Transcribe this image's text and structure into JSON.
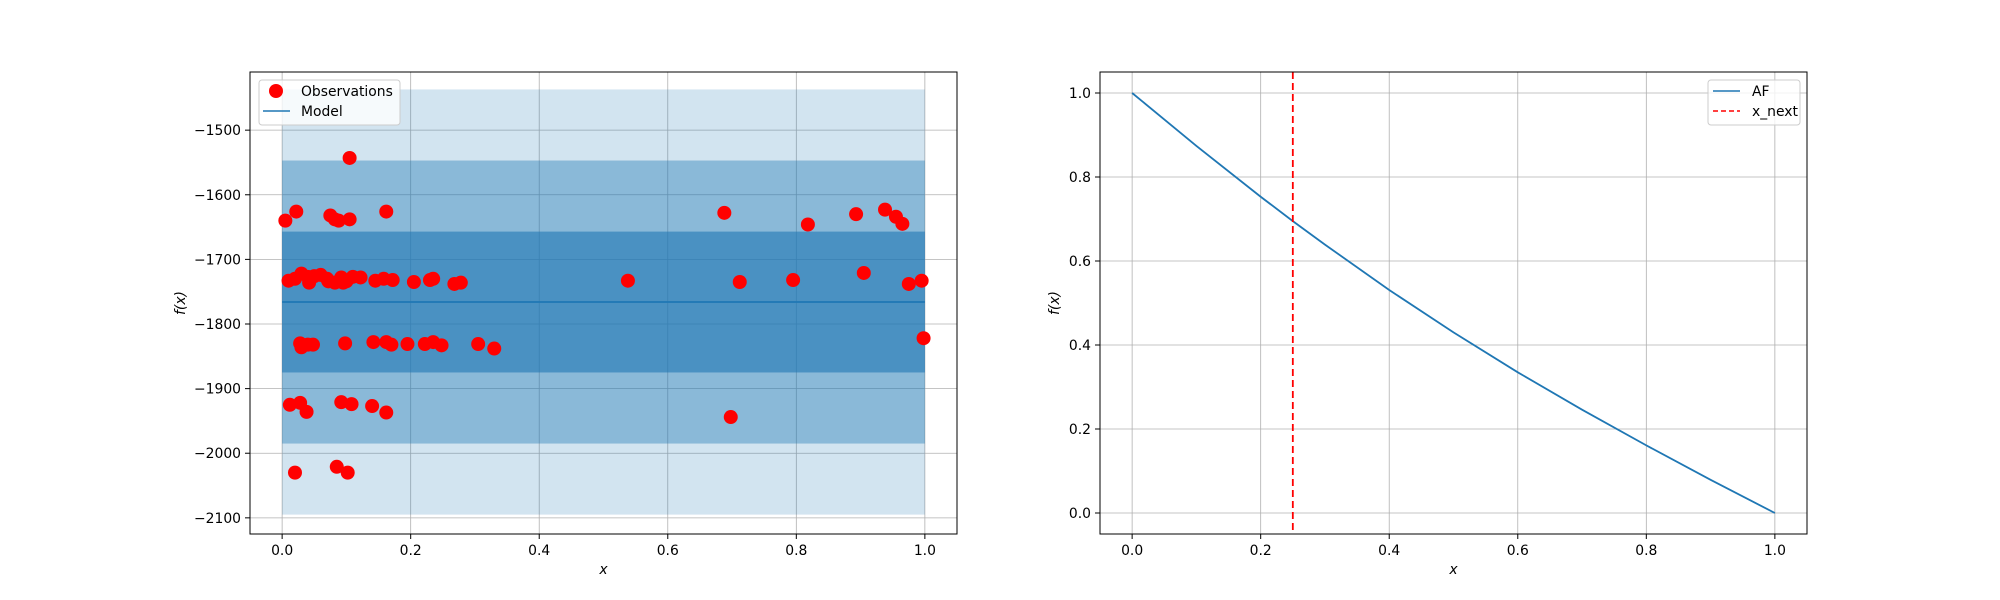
{
  "chart_data": [
    {
      "type": "scatter",
      "xlabel": "x",
      "ylabel": "f(x)",
      "xlim": [
        -0.05,
        1.05
      ],
      "ylim": [
        -2125,
        -1410
      ],
      "xticks": [
        "0.0",
        "0.2",
        "0.4",
        "0.6",
        "0.8",
        "1.0"
      ],
      "yticks": [
        "−2100",
        "−2000",
        "−1900",
        "−1800",
        "−1700",
        "−1600",
        "−1500"
      ],
      "grid": true,
      "legend_position": "top-left",
      "legend": [
        {
          "label": "Observations",
          "marker": "circle",
          "color": "#ff0000"
        },
        {
          "label": "Model",
          "marker": "line",
          "color": "#1f77b4"
        }
      ],
      "bands": [
        {
          "lower": -2095,
          "upper": -1437,
          "color": "#1f77b4",
          "opacity": 0.2
        },
        {
          "lower": -1985,
          "upper": -1547,
          "color": "#1f77b4",
          "opacity": 0.4
        },
        {
          "lower": -1875,
          "upper": -1657,
          "color": "#1f77b4",
          "opacity": 0.6
        }
      ],
      "model_line": {
        "x": [
          0.0,
          1.0
        ],
        "y": [
          -1766,
          -1766
        ]
      },
      "observations": {
        "x": [
          0.005,
          0.022,
          0.082,
          0.105,
          0.162,
          0.688,
          0.818,
          0.893,
          0.938,
          0.955,
          0.965,
          0.01,
          0.02,
          0.03,
          0.042,
          0.05,
          0.06,
          0.072,
          0.082,
          0.092,
          0.1,
          0.11,
          0.122,
          0.145,
          0.158,
          0.172,
          0.205,
          0.23,
          0.235,
          0.268,
          0.278,
          0.538,
          0.712,
          0.795,
          0.905,
          0.975,
          0.995,
          0.04,
          0.07,
          0.095,
          0.028,
          0.03,
          0.04,
          0.048,
          0.098,
          0.142,
          0.162,
          0.17,
          0.195,
          0.222,
          0.235,
          0.248,
          0.305,
          0.33,
          0.998,
          0.012,
          0.028,
          0.038,
          0.092,
          0.108,
          0.14,
          0.162,
          0.698,
          0.02,
          0.085,
          0.102,
          0.105,
          0.075,
          0.088
        ],
        "y": [
          -1640,
          -1626,
          -1638,
          -1638,
          -1626,
          -1628,
          -1646,
          -1630,
          -1623,
          -1634,
          -1645,
          -1733,
          -1730,
          -1722,
          -1736,
          -1726,
          -1724,
          -1734,
          -1736,
          -1728,
          -1734,
          -1727,
          -1728,
          -1733,
          -1730,
          -1732,
          -1735,
          -1732,
          -1730,
          -1738,
          -1736,
          -1733,
          -1735,
          -1732,
          -1721,
          -1738,
          -1733,
          -1727,
          -1730,
          -1736,
          -1830,
          -1836,
          -1832,
          -1832,
          -1830,
          -1828,
          -1828,
          -1832,
          -1831,
          -1831,
          -1828,
          -1833,
          -1831,
          -1838,
          -1822,
          -1925,
          -1922,
          -1936,
          -1921,
          -1924,
          -1927,
          -1937,
          -1944,
          -2030,
          -2021,
          -2030,
          -1543,
          -1632,
          -1640
        ]
      }
    },
    {
      "type": "line",
      "xlabel": "x",
      "ylabel": "f(x)",
      "xlim": [
        -0.05,
        1.05
      ],
      "ylim": [
        -0.05,
        1.05
      ],
      "xticks": [
        "0.0",
        "0.2",
        "0.4",
        "0.6",
        "0.8",
        "1.0"
      ],
      "yticks": [
        "0.0",
        "0.2",
        "0.4",
        "0.6",
        "0.8",
        "1.0"
      ],
      "grid": true,
      "legend_position": "top-right",
      "legend": [
        {
          "label": "AF",
          "style": "solid",
          "color": "#1f77b4"
        },
        {
          "label": "x_next",
          "style": "dashed",
          "color": "#ff0000"
        }
      ],
      "series": [
        {
          "name": "AF",
          "x": [
            0.0,
            0.1,
            0.2,
            0.25,
            0.3,
            0.4,
            0.5,
            0.6,
            0.7,
            0.8,
            0.9,
            1.0
          ],
          "y": [
            1.0,
            0.874,
            0.753,
            0.695,
            0.639,
            0.531,
            0.43,
            0.335,
            0.246,
            0.161,
            0.079,
            0.0
          ]
        }
      ],
      "x_next": 0.25
    }
  ]
}
